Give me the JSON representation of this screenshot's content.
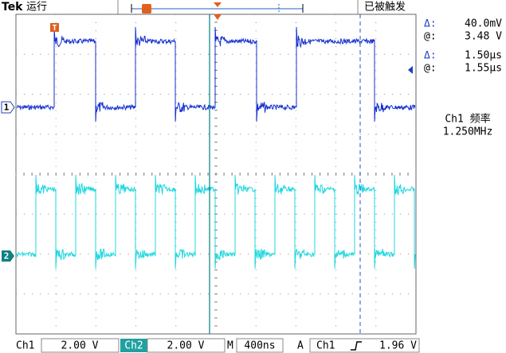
{
  "header": {
    "brand": "Tek",
    "status": "运行",
    "trigger_state": "已被触发"
  },
  "markers": {
    "trigger": "T",
    "ch1": "1",
    "ch2": "2"
  },
  "cursor_readout": {
    "amplitude_delta_label": "Δ:",
    "amplitude_delta": "40.0mV",
    "amplitude_at_label": "@:",
    "amplitude_at": "3.48 V",
    "time_delta_label": "Δ:",
    "time_delta": "1.50µs",
    "time_at_label": "@:",
    "time_at": "1.55µs"
  },
  "measurement": {
    "label": "Ch1 频率",
    "value": "1.250MHz"
  },
  "footer": {
    "ch1_label": "Ch1",
    "ch1_scale": "2.00 V",
    "ch2_label": "Ch2",
    "ch2_scale": "2.00 V",
    "timebase_label": "M",
    "timebase": "400ns",
    "trigger_label": "A",
    "trigger_source": "Ch1",
    "trigger_level": "1.96 V"
  }
}
